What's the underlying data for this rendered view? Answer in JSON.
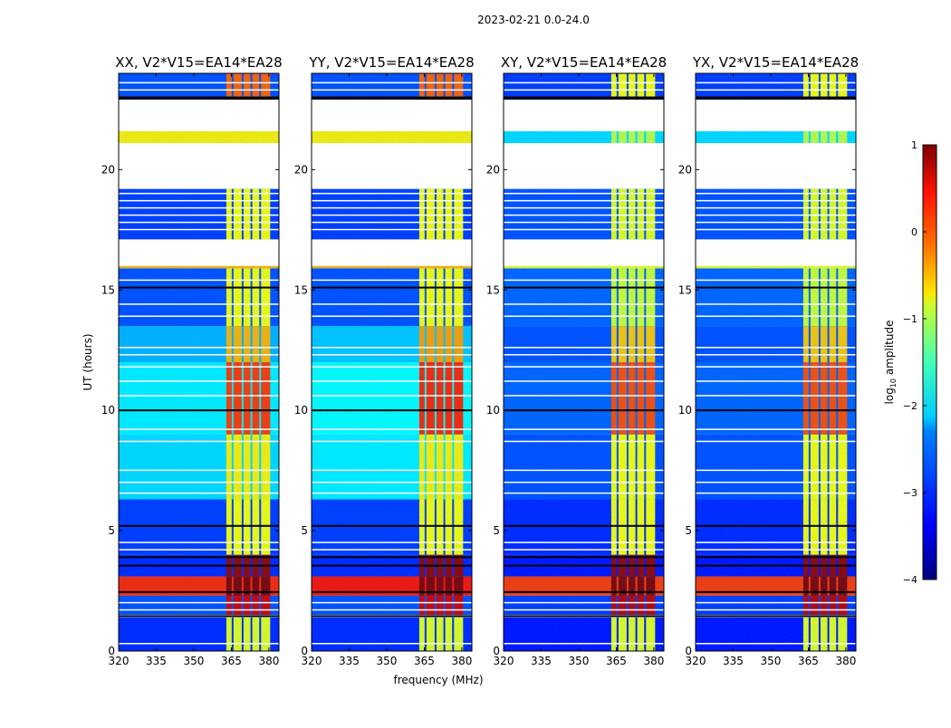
{
  "chart_data": {
    "type": "heatmap",
    "suptitle": "2023-02-21 0.0-24.0",
    "xlabel": "frequency (MHz)",
    "ylabel": "UT (hours)",
    "xlim": [
      320,
      384
    ],
    "ylim": [
      0,
      24
    ],
    "xticks": [
      320,
      335,
      350,
      365,
      380
    ],
    "yticks": [
      0,
      5,
      10,
      15,
      20
    ],
    "colorbar": {
      "label": "log10 amplitude",
      "label_main": "log",
      "label_sub": "10",
      "label_rest": " amplitude",
      "range": [
        -4,
        1
      ],
      "ticks": [
        1,
        0,
        -1,
        -2,
        -3,
        -4
      ],
      "colormap": "jet"
    },
    "panels": [
      {
        "title": "XX, V2*V15=EA14*EA28"
      },
      {
        "title": "YY, V2*V15=EA14*EA28"
      },
      {
        "title": "XY, V2*V15=EA14*EA28"
      },
      {
        "title": "YX, V2*V15=EA14*EA28"
      }
    ],
    "rfi_band_mhz": [
      363,
      380.5
    ],
    "rfi_notches_mhz": [
      365.5,
      369.5,
      373,
      376.5
    ],
    "bands": [
      {
        "t": [
          0,
          1.4
        ],
        "bg": [
          -3.2,
          -3.2,
          -3.3,
          -3.3
        ],
        "rfi": [
          -1.0,
          -1.0,
          -1.0,
          -1.0
        ]
      },
      {
        "t": [
          1.5,
          2.3
        ],
        "bg": [
          -3.0,
          -3.0,
          -3.1,
          -3.1
        ],
        "rfi": [
          0.6,
          0.6,
          0.7,
          0.7
        ]
      },
      {
        "t": [
          2.3,
          3.1
        ],
        "bg": [
          0.2,
          0.3,
          0.1,
          0.1
        ],
        "rfi": [
          1.0,
          1.0,
          1.0,
          1.0
        ]
      },
      {
        "t": [
          3.1,
          4.0
        ],
        "bg": [
          -3.2,
          -3.2,
          -3.3,
          -3.3
        ],
        "rfi": [
          0.9,
          0.9,
          0.9,
          0.9
        ]
      },
      {
        "t": [
          4.0,
          6.3
        ],
        "bg": [
          -3.1,
          -3.1,
          -3.2,
          -3.2
        ],
        "rfi": [
          -0.9,
          -0.9,
          -0.9,
          -0.9
        ]
      },
      {
        "t": [
          6.3,
          9.0
        ],
        "bg": [
          -2.3,
          -2.2,
          -3.0,
          -3.0
        ],
        "rfi": [
          -0.8,
          -0.8,
          -0.9,
          -0.9
        ]
      },
      {
        "t": [
          9.0,
          12.0
        ],
        "bg": [
          -2.2,
          -2.1,
          -2.9,
          -2.9
        ],
        "rfi": [
          0.1,
          0.2,
          0.0,
          0.0
        ]
      },
      {
        "t": [
          12.0,
          13.5
        ],
        "bg": [
          -2.5,
          -2.4,
          -3.0,
          -3.0
        ],
        "rfi": [
          -0.5,
          -0.4,
          -0.6,
          -0.6
        ]
      },
      {
        "t": [
          13.5,
          15.9
        ],
        "bg": [
          -3.0,
          -3.0,
          -2.9,
          -2.9
        ],
        "rfi": [
          -0.9,
          -0.9,
          -1.1,
          -1.1
        ]
      },
      {
        "t": [
          15.9,
          16.0
        ],
        "bg": [
          -0.5,
          -0.5,
          -1.0,
          -1.0
        ],
        "rfi": [
          -0.5,
          -0.5,
          -1.0,
          -1.0
        ]
      },
      {
        "t": [
          17.1,
          19.2
        ],
        "bg": [
          -3.1,
          -3.1,
          -3.0,
          -3.0
        ],
        "rfi": [
          -0.9,
          -0.9,
          -1.0,
          -1.0
        ]
      },
      {
        "t": [
          21.1,
          21.6
        ],
        "bg": [
          -0.8,
          -0.8,
          -2.3,
          -2.3
        ],
        "rfi": [
          -0.8,
          -0.8,
          -1.2,
          -1.2
        ]
      },
      {
        "t": [
          22.9,
          24.0
        ],
        "bg": [
          -3.0,
          -3.0,
          -3.1,
          -3.1
        ],
        "rfi": [
          -0.1,
          -0.1,
          -0.9,
          -0.9
        ]
      }
    ],
    "black_lines_h": [
      1.45,
      2.45,
      3.55,
      3.9,
      5.2,
      10.0,
      15.1,
      22.95,
      23.0
    ],
    "white_lines_h": [
      0.3,
      1.7,
      2.0,
      4.2,
      4.5,
      6.55,
      7.0,
      7.5,
      8.7,
      9.2,
      10.6,
      11.2,
      11.8,
      12.3,
      12.6,
      13.9,
      14.4,
      15.4,
      17.5,
      17.8,
      18.1,
      18.4,
      18.7,
      19.0,
      23.3,
      23.6
    ]
  }
}
